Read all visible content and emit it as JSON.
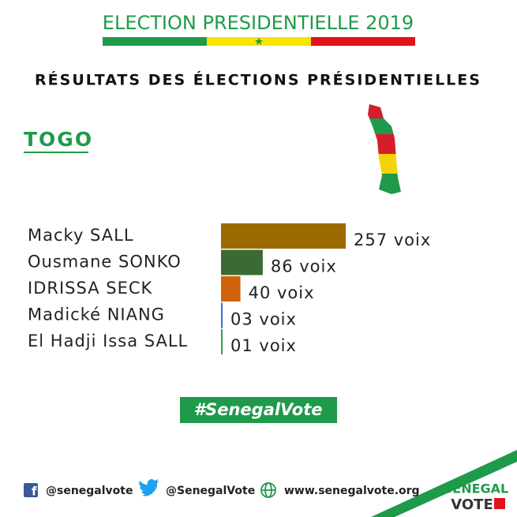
{
  "header": {
    "banner": "ELECTION PRESIDENTIELLE 2019",
    "title": "RÉSULTATS DES ÉLECTIONS PRÉSIDENTIELLES",
    "country": "TOGO"
  },
  "chart_data": {
    "type": "hbar",
    "categories": [
      "Macky SALL",
      "Ousmane SONKO",
      "IDRISSA SECK",
      "Madické NIANG",
      "El Hadji Issa SALL"
    ],
    "values": [
      257,
      86,
      40,
      3,
      1
    ],
    "value_labels": [
      "257 voix",
      "86 voix",
      "40 voix",
      "03 voix",
      "01 voix"
    ],
    "colors": [
      "#9a6a00",
      "#3b6b35",
      "#d2620a",
      "#3a6fd8",
      "#2aa04a"
    ]
  },
  "hashtag": "#SenegalVote",
  "footer": {
    "facebook": "@senegalvote",
    "twitter": "@SenegalVote",
    "website": "www.senegalvote.org",
    "logo_top": "SENEGAL",
    "logo_bottom": "VOTE"
  }
}
